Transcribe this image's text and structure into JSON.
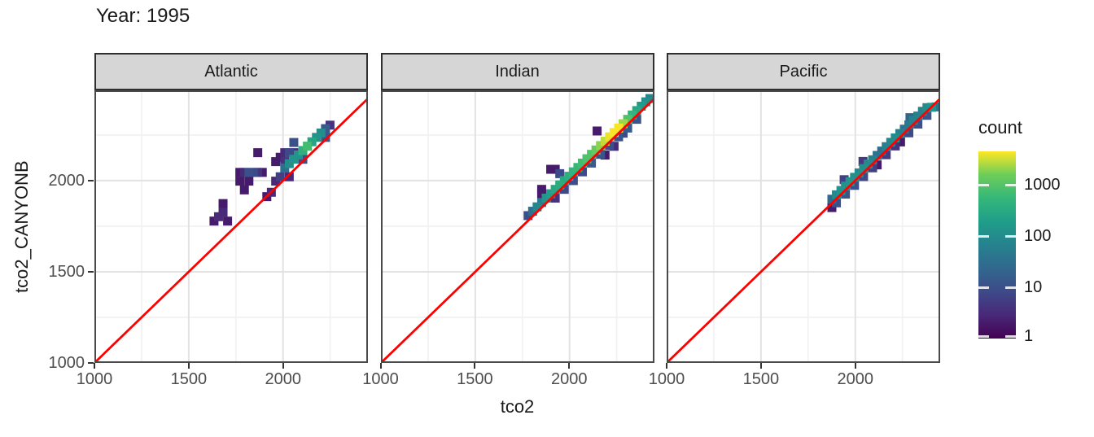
{
  "title": "Year: 1995",
  "axes": {
    "x": {
      "label": "tco2",
      "tick_labels": [
        "1000",
        "1500",
        "2000"
      ],
      "tick_values": [
        1000,
        1500,
        2000
      ],
      "range": [
        1000,
        2450
      ],
      "minor_gridlines": [
        1250,
        1750,
        2250
      ]
    },
    "y": {
      "label": "tco2_CANYONB",
      "tick_labels": [
        "1000",
        "1500",
        "2000"
      ],
      "tick_values": [
        1000,
        1500,
        2000
      ],
      "range": [
        1000,
        2495
      ],
      "minor_gridlines": [
        1250,
        1750,
        2250
      ]
    }
  },
  "facets": [
    "Atlantic",
    "Indian",
    "Pacific"
  ],
  "legend": {
    "title": "count",
    "tick_labels": [
      "1000",
      "100",
      "10",
      "1"
    ],
    "tick_values": [
      1000,
      100,
      10,
      1
    ],
    "scale": "log10",
    "domain": [
      1,
      4400
    ]
  },
  "colors": {
    "reference_line": "#FF0000",
    "strip_fill": "#D6D6D6",
    "strip_border": "#2F2F2F",
    "panel_border": "#4A4A4A",
    "panel_background": "#FFFFFF",
    "grid_major": "#E2E2E2",
    "grid_minor": "#F1F1F1",
    "tick_mark": "#333333",
    "axis_text": "#4D4D4D",
    "text": "#1A1A1A",
    "viridis": [
      "#440154",
      "#482878",
      "#3E4A89",
      "#31688E",
      "#26828E",
      "#1F9E89",
      "#35B779",
      "#6DCD59",
      "#FDE725"
    ]
  },
  "chart_data": {
    "type": "heatmap",
    "title": "Year: 1995",
    "xlabel": "tco2",
    "ylabel": "tco2_CANYONB",
    "facet_panels": [
      "Atlantic",
      "Indian",
      "Pacific"
    ],
    "bin_width": 48,
    "x_range": [
      1000,
      2450
    ],
    "y_range": [
      1000,
      2495
    ],
    "x_ticks": [
      1000,
      1500,
      2000
    ],
    "y_ticks": [
      1000,
      1500,
      2000
    ],
    "grid": "major 500 / minor 250",
    "legend_position": "right",
    "count_scale": {
      "type": "log10",
      "min": 1,
      "max": 4400,
      "legend_ticks": [
        1000,
        100,
        10,
        1
      ]
    },
    "reference_line": "y = x (red)",
    "panels": [
      {
        "name": "Atlantic",
        "bins": [
          [
            1634,
            1778,
            2
          ],
          [
            1706,
            1778,
            2
          ],
          [
            1658,
            1802,
            3
          ],
          [
            1682,
            1826,
            3
          ],
          [
            1682,
            1874,
            2
          ],
          [
            1771,
            2045,
            2
          ],
          [
            1795,
            2045,
            3
          ],
          [
            1819,
            2045,
            10
          ],
          [
            1843,
            2045,
            8
          ],
          [
            1866,
            2045,
            4
          ],
          [
            1890,
            2045,
            2
          ],
          [
            1771,
            1997,
            2
          ],
          [
            1819,
            1997,
            2
          ],
          [
            1795,
            1949,
            2
          ],
          [
            1914,
            1912,
            2
          ],
          [
            1938,
            1936,
            3
          ],
          [
            1866,
            2153,
            2
          ],
          [
            2009,
            2153,
            3
          ],
          [
            2033,
            2153,
            8
          ],
          [
            2057,
            2153,
            3
          ],
          [
            2009,
            2104,
            4
          ],
          [
            1985,
            2128,
            2
          ],
          [
            1961,
            2104,
            2
          ],
          [
            2057,
            2209,
            10
          ],
          [
            1961,
            1997,
            3
          ],
          [
            1985,
            2021,
            6
          ],
          [
            2033,
            2021,
            3
          ],
          [
            2009,
            2069,
            30
          ],
          [
            2033,
            2093,
            100
          ],
          [
            2057,
            2117,
            130
          ],
          [
            2081,
            2141,
            130
          ],
          [
            2105,
            2165,
            400
          ],
          [
            2129,
            2189,
            700
          ],
          [
            2153,
            2213,
            250
          ],
          [
            2177,
            2237,
            130
          ],
          [
            2201,
            2261,
            100
          ],
          [
            2225,
            2285,
            14
          ],
          [
            2249,
            2304,
            4
          ],
          [
            2105,
            2117,
            10
          ],
          [
            2225,
            2237,
            12
          ]
        ]
      },
      {
        "name": "Indian",
        "bins": [
          [
            1780,
            1808,
            10
          ],
          [
            1804,
            1832,
            30
          ],
          [
            1828,
            1856,
            80
          ],
          [
            1852,
            1880,
            50
          ],
          [
            1876,
            1904,
            130
          ],
          [
            1900,
            1928,
            200
          ],
          [
            1924,
            1952,
            280
          ],
          [
            1948,
            1976,
            350
          ],
          [
            1972,
            2000,
            300
          ],
          [
            1996,
            2024,
            380
          ],
          [
            2020,
            2048,
            480
          ],
          [
            2044,
            2072,
            550
          ],
          [
            2068,
            2096,
            700
          ],
          [
            2092,
            2120,
            850
          ],
          [
            2116,
            2144,
            950
          ],
          [
            2140,
            2168,
            1300
          ],
          [
            2164,
            2192,
            1900
          ],
          [
            2188,
            2216,
            2800
          ],
          [
            2212,
            2240,
            3800
          ],
          [
            2236,
            2264,
            4300
          ],
          [
            2260,
            2288,
            4200
          ],
          [
            2284,
            2312,
            2200
          ],
          [
            2308,
            2336,
            900
          ],
          [
            2332,
            2360,
            480
          ],
          [
            2356,
            2384,
            280
          ],
          [
            2380,
            2408,
            170
          ],
          [
            2404,
            2432,
            110
          ],
          [
            2426,
            2450,
            80
          ],
          [
            1852,
            1928,
            2
          ],
          [
            1852,
            1952,
            2
          ],
          [
            1900,
            2062,
            2
          ],
          [
            1924,
            2062,
            2
          ],
          [
            1948,
            2038,
            8
          ],
          [
            2146,
            2272,
            2
          ],
          [
            1924,
            1904,
            4
          ],
          [
            1972,
            1952,
            8
          ],
          [
            2020,
            2000,
            10
          ],
          [
            2068,
            2048,
            8
          ],
          [
            2116,
            2096,
            15
          ],
          [
            2164,
            2144,
            12
          ],
          [
            2212,
            2192,
            10
          ],
          [
            2260,
            2240,
            12
          ],
          [
            2308,
            2288,
            15
          ],
          [
            2356,
            2336,
            12
          ],
          [
            2188,
            2140,
            2
          ],
          [
            2236,
            2188,
            3
          ],
          [
            2284,
            2260,
            8
          ]
        ]
      },
      {
        "name": "Pacific",
        "bins": [
          [
            1876,
            1898,
            25
          ],
          [
            1900,
            1922,
            90
          ],
          [
            1924,
            1946,
            130
          ],
          [
            1948,
            1970,
            110
          ],
          [
            1972,
            1994,
            130
          ],
          [
            1996,
            2018,
            110
          ],
          [
            2020,
            2042,
            90
          ],
          [
            2044,
            2066,
            110
          ],
          [
            2068,
            2090,
            90
          ],
          [
            2092,
            2114,
            60
          ],
          [
            2116,
            2138,
            35
          ],
          [
            2140,
            2162,
            30
          ],
          [
            2164,
            2186,
            60
          ],
          [
            2188,
            2210,
            80
          ],
          [
            2212,
            2234,
            100
          ],
          [
            2236,
            2258,
            60
          ],
          [
            2260,
            2282,
            35
          ],
          [
            2284,
            2306,
            45
          ],
          [
            2308,
            2330,
            70
          ],
          [
            2332,
            2354,
            60
          ],
          [
            2356,
            2380,
            70
          ],
          [
            2380,
            2400,
            100
          ],
          [
            2404,
            2402,
            130
          ],
          [
            2428,
            2404,
            40
          ],
          [
            1900,
            1878,
            10
          ],
          [
            1948,
            1926,
            12
          ],
          [
            1996,
            1974,
            10
          ],
          [
            2044,
            2022,
            8
          ],
          [
            2092,
            2070,
            6
          ],
          [
            2164,
            2142,
            5
          ],
          [
            2212,
            2190,
            4
          ],
          [
            2284,
            2262,
            8
          ],
          [
            2332,
            2310,
            10
          ],
          [
            2380,
            2358,
            12
          ],
          [
            2240,
            2212,
            2
          ],
          [
            2116,
            2086,
            2
          ],
          [
            1876,
            1852,
            2
          ],
          [
            1941,
            2005,
            6
          ],
          [
            2041,
            2105,
            5
          ],
          [
            2290,
            2345,
            20
          ]
        ]
      }
    ]
  }
}
